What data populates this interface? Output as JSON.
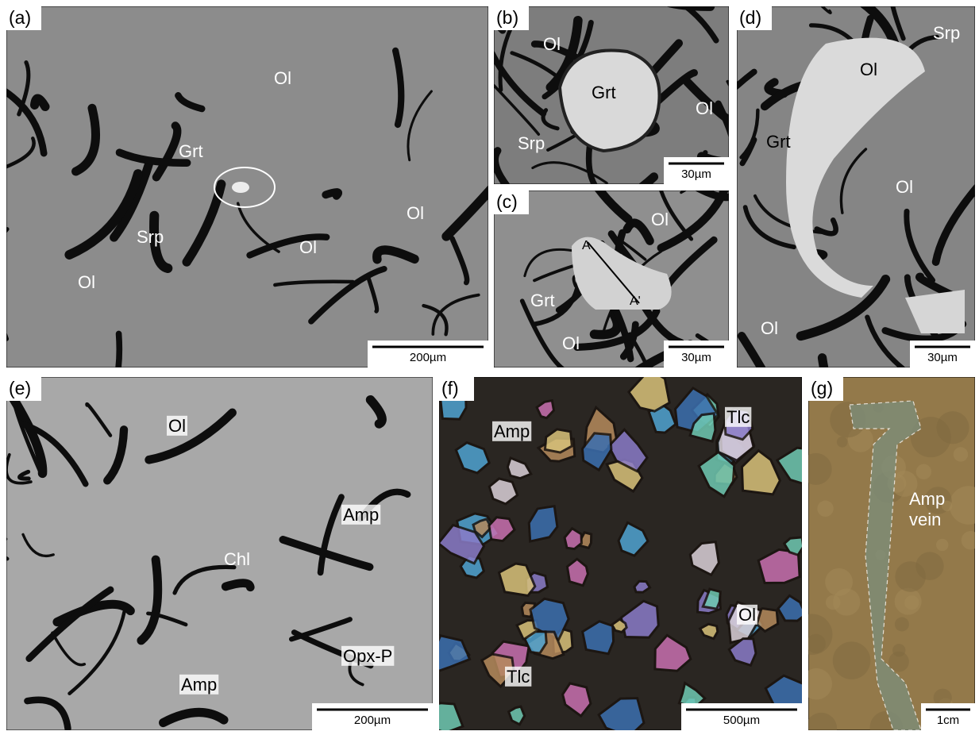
{
  "panels": [
    {
      "label": "(a)",
      "annotations": [
        "Ol",
        "Grt",
        "Srp",
        "Ol",
        "Ol",
        "Ol"
      ],
      "scale_bar": "200µm"
    },
    {
      "label": "(b)",
      "annotations": [
        "Ol",
        "Grt",
        "Ol",
        "Srp"
      ],
      "scale_bar": "30µm"
    },
    {
      "label": "(c)",
      "annotations": [
        "Ol",
        "A",
        "Grt",
        "A'",
        "Ol"
      ],
      "scale_bar": "30µm"
    },
    {
      "label": "(d)",
      "annotations": [
        "Srp",
        "Ol",
        "Grt",
        "Ol",
        "Ol"
      ],
      "scale_bar": "30µm"
    },
    {
      "label": "(e)",
      "annotations": [
        "Ol",
        "Amp",
        "Chl",
        "Opx-P",
        "Amp"
      ],
      "scale_bar": "200µm"
    },
    {
      "label": "(f)",
      "annotations": [
        "Amp",
        "Tlc",
        "Ol",
        "Tlc"
      ],
      "scale_bar": "500µm"
    },
    {
      "label": "(g)",
      "annotations": [
        "Amp",
        "vein"
      ],
      "scale_bar": "1cm"
    }
  ]
}
